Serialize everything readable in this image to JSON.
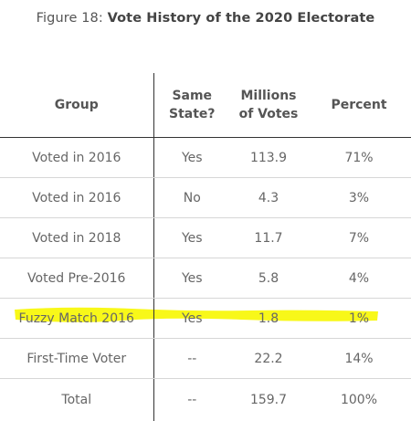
{
  "title": {
    "prefix": "Figure 18:",
    "bold": "Vote History of the 2020 Electorate"
  },
  "headers": {
    "group": "Group",
    "same_state_line1": "Same",
    "same_state_line2": "State?",
    "votes_line1": "Millions",
    "votes_line2": "of Votes",
    "percent": "Percent"
  },
  "rows": [
    {
      "group": "Voted in 2016",
      "same_state": "Yes",
      "votes": "113.9",
      "percent": "71%"
    },
    {
      "group": "Voted in 2016",
      "same_state": "No",
      "votes": "4.3",
      "percent": "3%"
    },
    {
      "group": "Voted in 2018",
      "same_state": "Yes",
      "votes": "11.7",
      "percent": "7%"
    },
    {
      "group": "Voted Pre-2016",
      "same_state": "Yes",
      "votes": "5.8",
      "percent": "4%"
    },
    {
      "group": "Fuzzy Match 2016",
      "same_state": "Yes",
      "votes": "1.8",
      "percent": "1%"
    },
    {
      "group": "First-Time Voter",
      "same_state": "--",
      "votes": "22.2",
      "percent": "14%"
    },
    {
      "group": "Total",
      "same_state": "--",
      "votes": "159.7",
      "percent": "100%"
    }
  ],
  "highlight": {
    "row_index": 4,
    "color": "#f7f700"
  },
  "chart_data": {
    "type": "table",
    "title": "Figure 18: Vote History of the 2020 Electorate",
    "columns": [
      "Group",
      "Same State?",
      "Millions of Votes",
      "Percent"
    ],
    "rows": [
      [
        "Voted in 2016",
        "Yes",
        113.9,
        "71%"
      ],
      [
        "Voted in 2016",
        "No",
        4.3,
        "3%"
      ],
      [
        "Voted in 2018",
        "Yes",
        11.7,
        "7%"
      ],
      [
        "Voted Pre-2016",
        "Yes",
        5.8,
        "4%"
      ],
      [
        "Fuzzy Match 2016",
        "Yes",
        1.8,
        "1%"
      ],
      [
        "First-Time Voter",
        "--",
        22.2,
        "14%"
      ],
      [
        "Total",
        "--",
        159.7,
        "100%"
      ]
    ]
  }
}
